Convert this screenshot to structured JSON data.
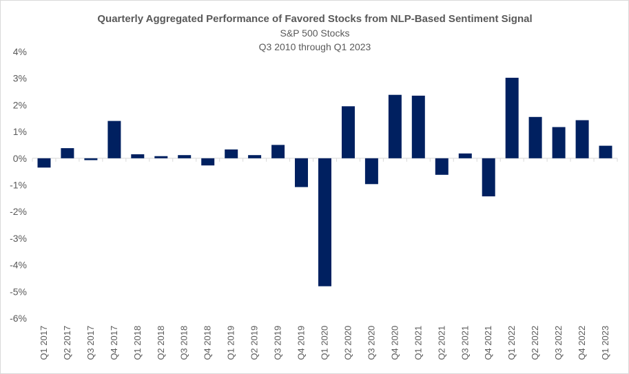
{
  "chart_data": {
    "type": "bar",
    "title": "Quarterly Aggregated Performance of Favored Stocks from NLP-Based Sentiment Signal",
    "subtitle_lines": [
      "S&P 500 Stocks",
      "Q3 2010 through Q1 2023"
    ],
    "xlabel": "",
    "ylabel": "",
    "ylim": [
      -6,
      4
    ],
    "y_ticks": [
      "4%",
      "3%",
      "2%",
      "1%",
      "0%",
      "-1%",
      "-2%",
      "-3%",
      "-4%",
      "-5%",
      "-6%"
    ],
    "grid": false,
    "bar_color": "#002060",
    "categories": [
      "Q1 2017",
      "Q2 2017",
      "Q3 2017",
      "Q4 2017",
      "Q1 2018",
      "Q2 2018",
      "Q3 2018",
      "Q4 2018",
      "Q1 2019",
      "Q2 2019",
      "Q3 2019",
      "Q4 2019",
      "Q1 2020",
      "Q2 2020",
      "Q3 2020",
      "Q4 2020",
      "Q1 2021",
      "Q2 2021",
      "Q3 2021",
      "Q4 2021",
      "Q1 2022",
      "Q2 2022",
      "Q3 2022",
      "Q4 2022",
      "Q1 2023"
    ],
    "values": [
      -0.35,
      0.38,
      -0.07,
      1.4,
      0.15,
      0.08,
      0.12,
      -0.27,
      0.33,
      0.12,
      0.5,
      -1.08,
      -4.8,
      1.95,
      -0.97,
      2.38,
      2.35,
      -0.62,
      0.18,
      -1.43,
      3.02,
      1.55,
      1.17,
      1.43,
      0.47
    ]
  }
}
